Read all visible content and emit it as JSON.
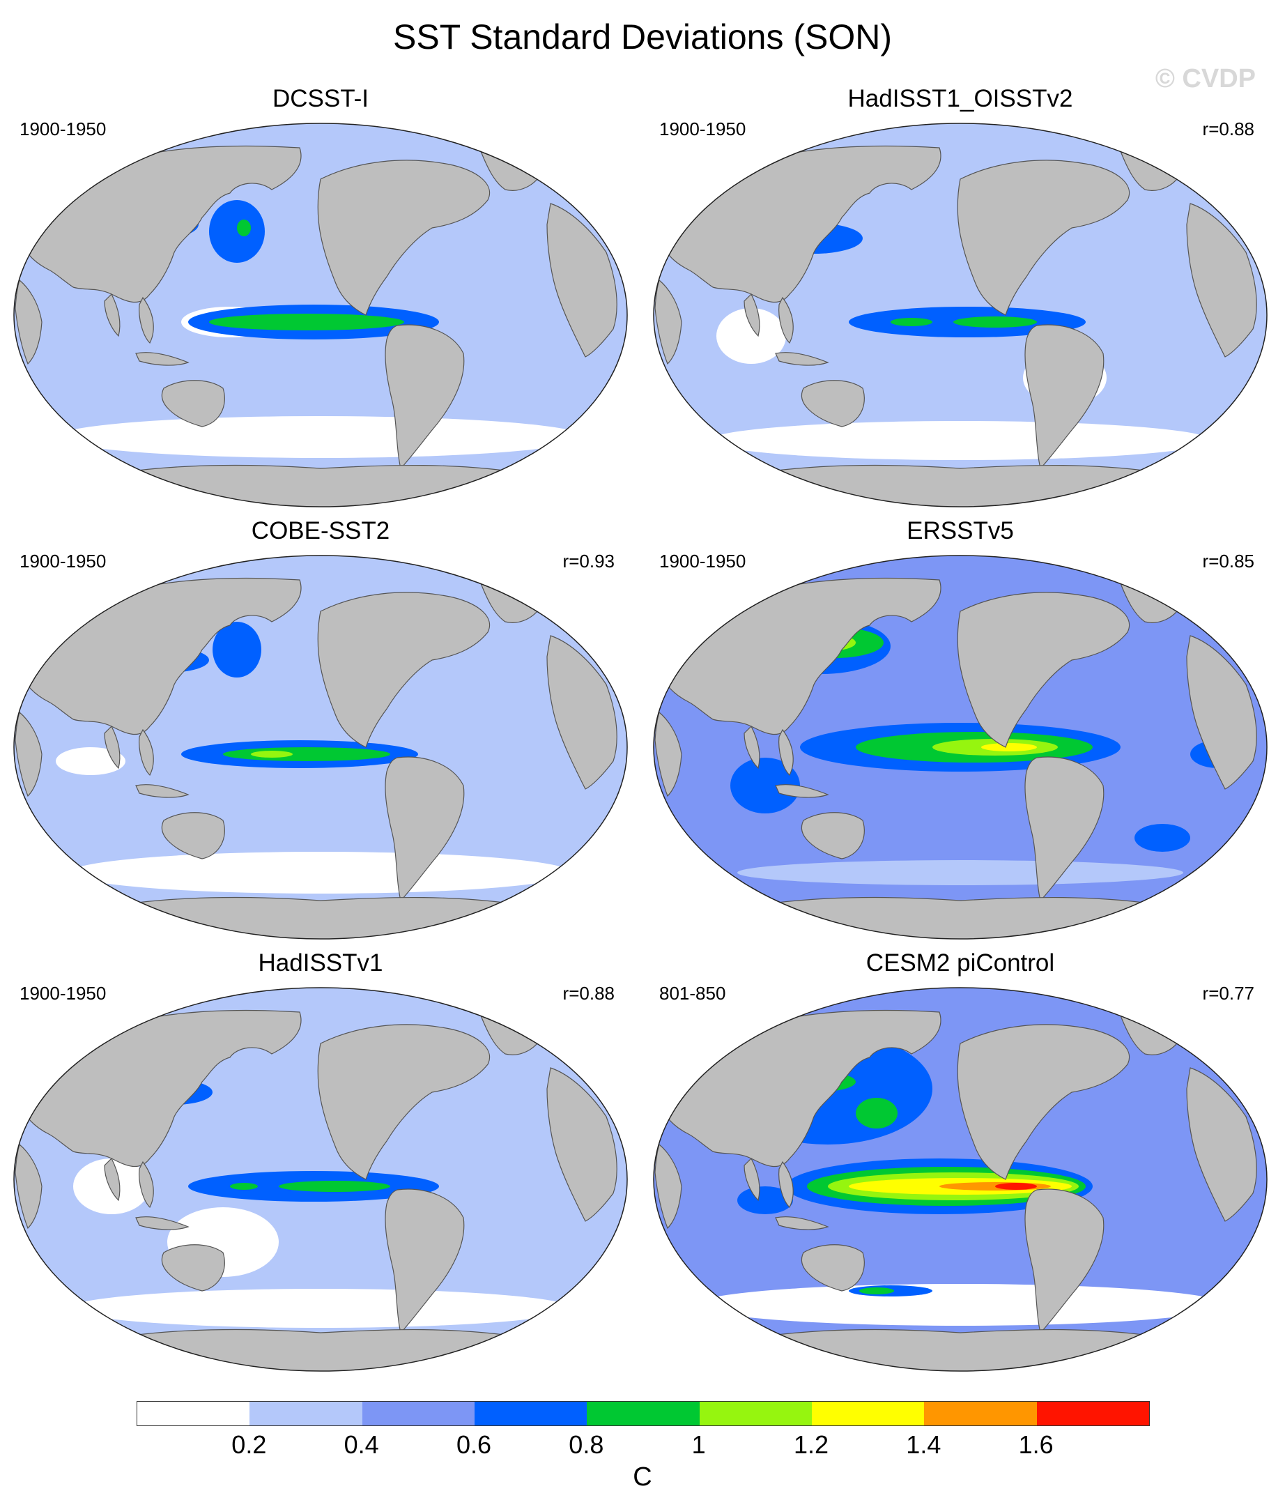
{
  "title": "SST Standard Deviations (SON)",
  "watermark": "© CVDP",
  "panels": [
    {
      "title": "DCSST-I",
      "period": "1900-1950",
      "corr": ""
    },
    {
      "title": "HadISST1_OISSTv2",
      "period": "1900-1950",
      "corr": "r=0.88"
    },
    {
      "title": "COBE-SST2",
      "period": "1900-1950",
      "corr": "r=0.93"
    },
    {
      "title": "ERSSTv5",
      "period": "1900-1950",
      "corr": "r=0.85"
    },
    {
      "title": "HadISSTv1",
      "period": "1900-1950",
      "corr": "r=0.88"
    },
    {
      "title": "CESM2 piControl",
      "period": "801-850",
      "corr": "r=0.77"
    }
  ],
  "colorbar": {
    "colors": [
      "#ffffff",
      "#b4c8fa",
      "#7d96f5",
      "#0060ff",
      "#00c832",
      "#96f50f",
      "#ffff00",
      "#ff9600",
      "#ff1400"
    ],
    "labels": [
      "0.2",
      "0.4",
      "0.6",
      "0.8",
      "1",
      "1.2",
      "1.4",
      "1.6"
    ],
    "units": "C"
  },
  "colors": {
    "land": "#bebebe",
    "coast": "#555555"
  }
}
